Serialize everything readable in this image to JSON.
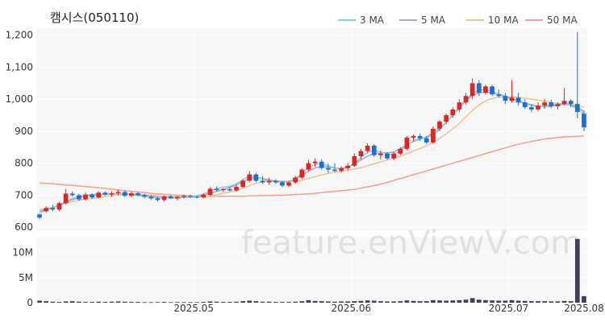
{
  "chart_data": {
    "type": "candlestick",
    "title": "캠시스(050110)",
    "watermark": "feature.enViewV.com",
    "legend": [
      {
        "label": "3 MA",
        "color": "#7fd3d3"
      },
      {
        "label": "5 MA",
        "color": "#b59ad4"
      },
      {
        "label": "10 MA",
        "color": "#f2c08f"
      },
      {
        "label": "50 MA",
        "color": "#f4a08c"
      }
    ],
    "colors": {
      "up": "#e02424",
      "down": "#1f6fd1",
      "volume": "#3f3f5e",
      "plot_bg": "#f7f7f7",
      "grid": "#ffffff"
    },
    "price_axis": {
      "ticks": [
        600,
        700,
        800,
        900,
        "1,000",
        "1,100",
        "1,200"
      ],
      "ylim": [
        588,
        1222
      ]
    },
    "volume_axis": {
      "ticks": [
        "0",
        "5M",
        "10M"
      ],
      "ylim": [
        0,
        13
      ]
    },
    "x_tick_labels": [
      "2025.05",
      "2025.06",
      "2025.07",
      "2025.08"
    ],
    "x_tick_index": [
      24,
      48,
      72,
      96
    ],
    "candles": [
      [
        640,
        642,
        625,
        630
      ],
      [
        650,
        665,
        645,
        660
      ],
      [
        660,
        670,
        650,
        655
      ],
      [
        655,
        680,
        650,
        675
      ],
      [
        675,
        720,
        670,
        705
      ],
      [
        705,
        712,
        695,
        700
      ],
      [
        700,
        705,
        682,
        687
      ],
      [
        687,
        708,
        683,
        702
      ],
      [
        702,
        706,
        688,
        693
      ],
      [
        693,
        712,
        690,
        708
      ],
      [
        708,
        712,
        698,
        702
      ],
      [
        702,
        712,
        695,
        706
      ],
      [
        706,
        718,
        700,
        710
      ],
      [
        710,
        715,
        695,
        698
      ],
      [
        698,
        712,
        694,
        706
      ],
      [
        706,
        710,
        698,
        700
      ],
      [
        700,
        705,
        690,
        695
      ],
      [
        695,
        700,
        685,
        690
      ],
      [
        690,
        695,
        680,
        685
      ],
      [
        685,
        700,
        680,
        696
      ],
      [
        696,
        700,
        688,
        690
      ],
      [
        690,
        698,
        684,
        695
      ],
      [
        695,
        702,
        690,
        698
      ],
      [
        698,
        702,
        692,
        695
      ],
      [
        695,
        700,
        690,
        693
      ],
      [
        693,
        706,
        690,
        701
      ],
      [
        701,
        725,
        698,
        720
      ],
      [
        720,
        728,
        712,
        716
      ],
      [
        716,
        722,
        710,
        719
      ],
      [
        719,
        725,
        712,
        715
      ],
      [
        715,
        732,
        711,
        726
      ],
      [
        726,
        750,
        722,
        745
      ],
      [
        745,
        775,
        740,
        765
      ],
      [
        765,
        770,
        740,
        745
      ],
      [
        745,
        760,
        735,
        740
      ],
      [
        740,
        755,
        732,
        745
      ],
      [
        745,
        750,
        735,
        740
      ],
      [
        740,
        745,
        725,
        730
      ],
      [
        730,
        745,
        725,
        740
      ],
      [
        740,
        760,
        735,
        755
      ],
      [
        755,
        785,
        750,
        780
      ],
      [
        780,
        810,
        775,
        800
      ],
      [
        800,
        815,
        790,
        805
      ],
      [
        805,
        812,
        780,
        785
      ],
      [
        785,
        800,
        770,
        780
      ],
      [
        780,
        800,
        772,
        776
      ],
      [
        776,
        790,
        770,
        784
      ],
      [
        784,
        800,
        778,
        792
      ],
      [
        792,
        830,
        788,
        822
      ],
      [
        822,
        845,
        812,
        838
      ],
      [
        838,
        862,
        832,
        855
      ],
      [
        855,
        860,
        820,
        825
      ],
      [
        825,
        840,
        812,
        830
      ],
      [
        830,
        835,
        810,
        815
      ],
      [
        815,
        835,
        810,
        830
      ],
      [
        830,
        850,
        825,
        845
      ],
      [
        845,
        885,
        840,
        880
      ],
      [
        880,
        890,
        868,
        885
      ],
      [
        885,
        892,
        870,
        878
      ],
      [
        878,
        885,
        860,
        865
      ],
      [
        865,
        915,
        860,
        908
      ],
      [
        908,
        935,
        900,
        930
      ],
      [
        930,
        955,
        922,
        950
      ],
      [
        950,
        975,
        942,
        968
      ],
      [
        968,
        1000,
        960,
        990
      ],
      [
        990,
        1020,
        982,
        1010
      ],
      [
        1010,
        1065,
        1000,
        1050
      ],
      [
        1050,
        1060,
        1010,
        1020
      ],
      [
        1020,
        1045,
        1015,
        1040
      ],
      [
        1040,
        1045,
        1010,
        1015
      ],
      [
        1015,
        1030,
        1005,
        1010
      ],
      [
        1010,
        1020,
        985,
        995
      ],
      [
        995,
        1060,
        990,
        1005
      ],
      [
        1005,
        1020,
        980,
        990
      ],
      [
        990,
        1000,
        970,
        975
      ],
      [
        975,
        985,
        960,
        968
      ],
      [
        968,
        990,
        962,
        980
      ],
      [
        980,
        1000,
        970,
        990
      ],
      [
        990,
        998,
        972,
        978
      ],
      [
        978,
        990,
        968,
        985
      ],
      [
        985,
        1035,
        980,
        995
      ],
      [
        995,
        1000,
        975,
        985
      ],
      [
        985,
        1210,
        940,
        960
      ],
      [
        955,
        965,
        900,
        912
      ]
    ],
    "ma50": [
      738,
      737,
      736,
      734,
      732,
      731,
      729,
      727,
      725,
      723,
      721,
      719,
      716,
      714,
      712,
      710,
      708,
      706,
      704,
      703,
      701,
      700,
      699,
      698,
      697,
      697,
      697,
      697,
      697,
      697,
      697,
      697,
      698,
      698,
      699,
      699,
      700,
      700,
      701,
      702,
      703,
      704,
      706,
      708,
      710,
      712,
      714,
      716,
      718,
      722,
      726,
      730,
      735,
      740,
      746,
      752,
      758,
      764,
      770,
      776,
      782,
      788,
      794,
      800,
      806,
      812,
      818,
      824,
      830,
      836,
      842,
      848,
      854,
      859,
      864,
      868,
      872,
      876,
      878,
      880,
      882,
      883,
      884,
      885
    ],
    "ma10": [
      655,
      658,
      662,
      668,
      675,
      680,
      684,
      688,
      690,
      693,
      696,
      699,
      701,
      702,
      703,
      703,
      702,
      700,
      699,
      697,
      696,
      695,
      694,
      694,
      694,
      695,
      698,
      702,
      706,
      710,
      715,
      722,
      730,
      737,
      742,
      745,
      745,
      744,
      743,
      744,
      747,
      752,
      758,
      763,
      768,
      772,
      775,
      778,
      782,
      786,
      792,
      798,
      804,
      810,
      816,
      822,
      830,
      838,
      846,
      855,
      865,
      878,
      892,
      908,
      925,
      945,
      965,
      982,
      995,
      1002,
      1006,
      1008,
      1008,
      1006,
      1003,
      1000,
      997,
      994,
      990,
      987,
      985,
      984,
      980,
      975
    ],
    "ma5": [
      650,
      655,
      660,
      668,
      678,
      686,
      692,
      698,
      700,
      701,
      703,
      704,
      705,
      704,
      703,
      701,
      699,
      697,
      694,
      693,
      692,
      692,
      693,
      694,
      696,
      700,
      706,
      712,
      718,
      724,
      732,
      742,
      752,
      755,
      752,
      748,
      744,
      742,
      743,
      750,
      762,
      775,
      785,
      790,
      788,
      785,
      784,
      788,
      798,
      810,
      822,
      830,
      832,
      832,
      835,
      845,
      858,
      868,
      875,
      882,
      895,
      910,
      928,
      950,
      972,
      995,
      1012,
      1020,
      1022,
      1020,
      1016,
      1010,
      1002,
      995,
      988,
      982,
      978,
      976,
      978,
      982,
      984,
      982,
      975,
      962
    ],
    "ma3": [
      645,
      652,
      660,
      670,
      680,
      690,
      696,
      700,
      702,
      703,
      704,
      705,
      705,
      703,
      701,
      699,
      697,
      694,
      692,
      692,
      693,
      694,
      695,
      696,
      698,
      704,
      712,
      720,
      725,
      728,
      736,
      748,
      760,
      758,
      750,
      745,
      742,
      740,
      742,
      752,
      768,
      785,
      798,
      798,
      792,
      785,
      782,
      786,
      800,
      818,
      834,
      840,
      835,
      828,
      828,
      838,
      855,
      870,
      878,
      880,
      888,
      905,
      928,
      952,
      975,
      998,
      1018,
      1028,
      1030,
      1024,
      1015,
      1008,
      1000,
      993,
      986,
      980,
      976,
      978,
      982,
      985,
      986,
      980,
      970,
      955
    ],
    "volume": [
      0.4,
      0.3,
      0.2,
      0.15,
      0.25,
      0.3,
      0.2,
      0.15,
      0.15,
      0.2,
      0.15,
      0.2,
      0.25,
      0.2,
      0.15,
      0.15,
      0.1,
      0.1,
      0.12,
      0.15,
      0.1,
      0.12,
      0.1,
      0.1,
      0.1,
      0.15,
      0.25,
      0.2,
      0.15,
      0.15,
      0.2,
      0.3,
      0.4,
      0.3,
      0.2,
      0.2,
      0.15,
      0.15,
      0.15,
      0.2,
      0.3,
      0.5,
      0.35,
      0.3,
      0.25,
      0.2,
      0.25,
      0.25,
      0.3,
      0.35,
      0.45,
      0.4,
      0.3,
      0.25,
      0.25,
      0.3,
      0.45,
      0.35,
      0.3,
      0.3,
      0.5,
      0.45,
      0.4,
      0.45,
      0.5,
      0.6,
      0.9,
      0.6,
      0.5,
      0.45,
      0.4,
      0.4,
      0.5,
      0.4,
      0.35,
      0.3,
      0.3,
      0.3,
      0.25,
      0.25,
      0.35,
      0.3,
      12.7,
      1.3
    ]
  }
}
